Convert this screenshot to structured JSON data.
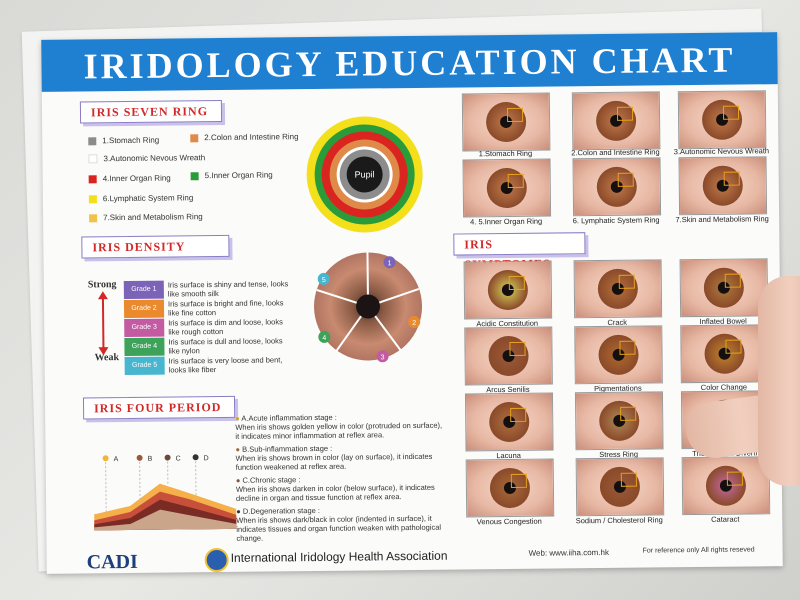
{
  "title": "IRIDOLOGY EDUCATION CHART",
  "sections": {
    "seven_ring": "IRIS SEVEN RING",
    "density": "IRIS DENSITY",
    "four_period": "IRIS FOUR PERIOD",
    "symptomes": "IRIS SYMPTOMES"
  },
  "rings": [
    {
      "label": "1.Stomach Ring",
      "color": "#8c8c8c"
    },
    {
      "label": "2.Colon and Intestine Ring",
      "color": "#e08a4a"
    },
    {
      "label": "3.Autonomic Nevous Wreath",
      "color": "#ffffff"
    },
    {
      "label": "4.Inner Organ Ring",
      "color": "#d9241f"
    },
    {
      "label": "5.Inner Organ Ring",
      "color": "#2a9b3a"
    },
    {
      "label": "6.Lymphatic System Ring",
      "color": "#f4df1b"
    },
    {
      "label": "7.Skin and Metabolism Ring",
      "color": "#f0c24a"
    }
  ],
  "pupil_label": "Pupil",
  "density": {
    "strong_label": "Strong",
    "weak_label": "Weak",
    "grades": [
      {
        "label": "Grade 1",
        "color": "#7b63b8",
        "desc": "Iris surface is shiny and tense, looks like smooth silk"
      },
      {
        "label": "Grade 2",
        "color": "#ea8a2d",
        "desc": "Iris surface is bright and fine, looks like fine cotton"
      },
      {
        "label": "Grade 3",
        "color": "#c35ba2",
        "desc": "Iris surface is dim and loose, looks like rough cotton"
      },
      {
        "label": "Grade 4",
        "color": "#3ea35a",
        "desc": "Iris surface is dull and loose, looks like nylon"
      },
      {
        "label": "Grade 5",
        "color": "#48b6cf",
        "desc": "Iris surface is very loose and bent, looks like fiber"
      }
    ],
    "wheel_numbers": [
      "1",
      "2",
      "3",
      "4",
      "5"
    ]
  },
  "four_period": {
    "markers": [
      "A",
      "B",
      "C",
      "D"
    ],
    "stages": [
      {
        "head": "A.Acute inflammation stage :",
        "body": "When iris shows golden yellow in color (protruded on surface), it indicates minor inflammation at reflex area."
      },
      {
        "head": "B.Sub-inflammation stage :",
        "body": "When iris shows brown in color (lay on surface), it indicates function weakened at reflex area."
      },
      {
        "head": "C.Chronic stage :",
        "body": "When iris shows darken in color (below surface), it indicates decline in organ and tissue function at reflex area."
      },
      {
        "head": "D.Degeneration stage :",
        "body": "When iris shows dark/black in color (indented in surface), it indicates tissues and organ function weaken with pathological change."
      }
    ]
  },
  "ring_photos": [
    "1.Stomach Ring",
    "2.Colon and Intestine Ring",
    "3.Autonomic Nevous Wreath",
    "4. 5.Inner Organ Ring",
    "6. Lymphatic System Ring",
    "7.Skin and Metabolism Ring"
  ],
  "symptom_photos": [
    "Acidic Constitution",
    "Crack",
    "Inflated Bowel",
    "Arcus Senilis",
    "Pigmentations",
    "Color Change",
    "Lacuna",
    "Stress Ring",
    "The Colon & Diverti",
    "Venous Congestion",
    "Sodium / Cholesterol Ring",
    "Cataract"
  ],
  "footer": {
    "logo": "CADI",
    "association": "International Iridology Health Association",
    "web": "Web: www.iiha.com.hk",
    "rights": "For reference only All rights reseved"
  },
  "colors": {
    "banner": "#1f7fd0",
    "section_text": "#d22828"
  }
}
